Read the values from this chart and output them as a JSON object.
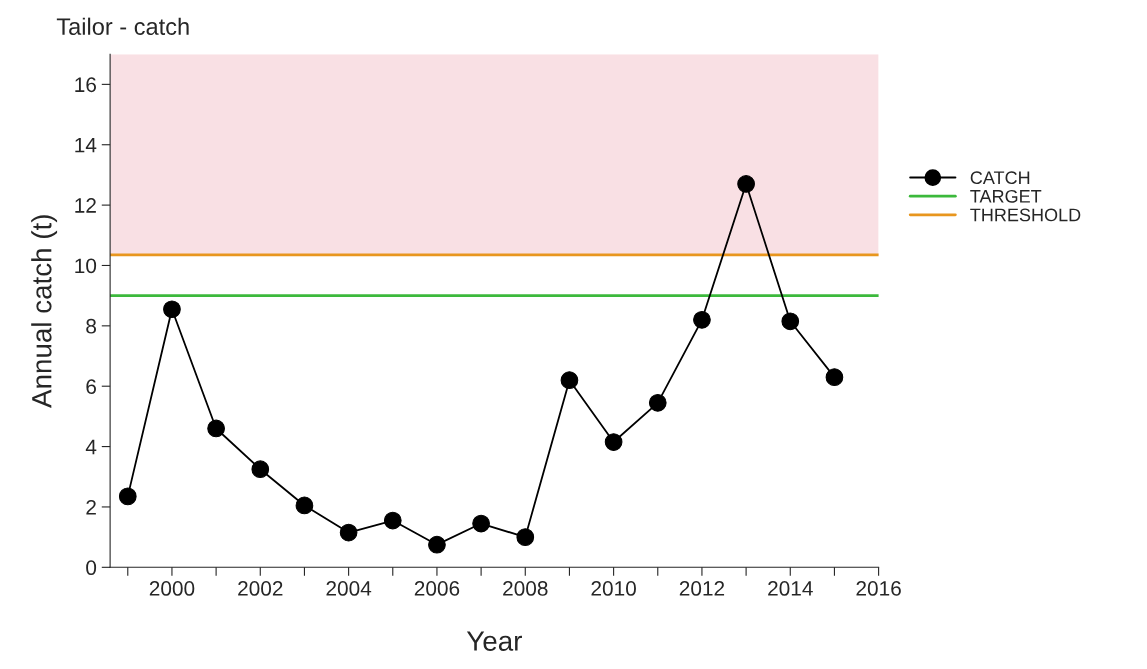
{
  "chart_data": {
    "type": "line",
    "title": "Tailor - catch",
    "xlabel": "Year",
    "ylabel": "Annual catch (t)",
    "x": [
      1999,
      2000,
      2001,
      2002,
      2003,
      2004,
      2005,
      2006,
      2007,
      2008,
      2009,
      2010,
      2011,
      2012,
      2013,
      2014,
      2015
    ],
    "series": [
      {
        "name": "CATCH",
        "color": "#000000",
        "marker": "circle",
        "values": [
          2.35,
          8.55,
          4.6,
          3.25,
          2.05,
          1.15,
          1.55,
          0.75,
          1.45,
          1.0,
          6.2,
          4.15,
          5.45,
          8.2,
          12.7,
          8.15,
          6.3
        ]
      }
    ],
    "ref_lines": [
      {
        "axis": "y",
        "value": 9.0,
        "label": "TARGET",
        "color": "#3cb93c"
      },
      {
        "axis": "y",
        "value": 10.35,
        "label": "THRESHOLD",
        "color": "#e8961e"
      }
    ],
    "bands": [
      {
        "axis": "y",
        "from": 10.35,
        "to": 17,
        "color": "#f9e0e4"
      }
    ],
    "xlim": [
      1998.6,
      2016
    ],
    "ylim": [
      0,
      17
    ],
    "xticks": [
      {
        "value": 1999,
        "label": null
      },
      2000,
      {
        "value": 2001,
        "label": null
      },
      2002,
      {
        "value": 2003,
        "label": null
      },
      2004,
      {
        "value": 2005,
        "label": null
      },
      2006,
      {
        "value": 2007,
        "label": null
      },
      2008,
      {
        "value": 2009,
        "label": null
      },
      2010,
      {
        "value": 2011,
        "label": null
      },
      2012,
      {
        "value": 2013,
        "label": null
      },
      2014,
      {
        "value": 2015,
        "label": null
      },
      2016
    ],
    "yticks": [
      0,
      2,
      4,
      6,
      8,
      10,
      12,
      14,
      16
    ],
    "grid": false,
    "legend": "right",
    "line_style": "solid"
  }
}
